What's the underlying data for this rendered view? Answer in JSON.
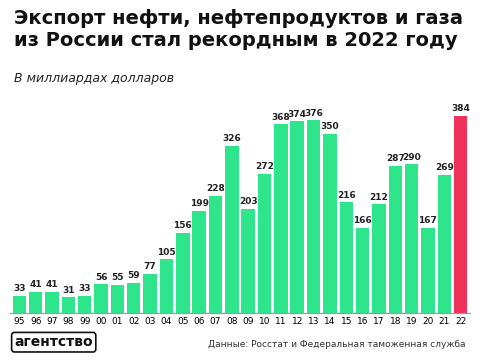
{
  "chart_data": {
    "type": "bar",
    "title": "Экспорт нефти, нефтепродуктов и газа из России стал рекордным в 2022 году",
    "subtitle": "В миллиардах долларов",
    "categories": [
      "95",
      "96",
      "97",
      "98",
      "99",
      "00",
      "01",
      "02",
      "03",
      "04",
      "05",
      "06",
      "07",
      "08",
      "09",
      "10",
      "11",
      "12",
      "13",
      "14",
      "15",
      "16",
      "17",
      "18",
      "19",
      "20",
      "21",
      "22"
    ],
    "values": [
      33,
      41,
      41,
      31,
      33,
      56,
      55,
      59,
      77,
      105,
      156,
      199,
      228,
      326,
      203,
      272,
      368,
      374,
      376,
      350,
      216,
      166,
      212,
      287,
      290,
      167,
      269,
      384
    ],
    "colors": [
      "#2fe58c",
      "#2fe58c",
      "#2fe58c",
      "#2fe58c",
      "#2fe58c",
      "#2fe58c",
      "#2fe58c",
      "#2fe58c",
      "#2fe58c",
      "#2fe58c",
      "#2fe58c",
      "#2fe58c",
      "#2fe58c",
      "#2fe58c",
      "#2fe58c",
      "#2fe58c",
      "#2fe58c",
      "#2fe58c",
      "#2fe58c",
      "#2fe58c",
      "#2fe58c",
      "#2fe58c",
      "#2fe58c",
      "#2fe58c",
      "#2fe58c",
      "#2fe58c",
      "#2fe58c",
      "#f0325a"
    ],
    "ylim": [
      0,
      400
    ],
    "data_labels": true,
    "tick_labels": "x",
    "grid": false,
    "brand": "агентство",
    "source": "Данные: Росстат и Федеральная таможенная служба"
  }
}
